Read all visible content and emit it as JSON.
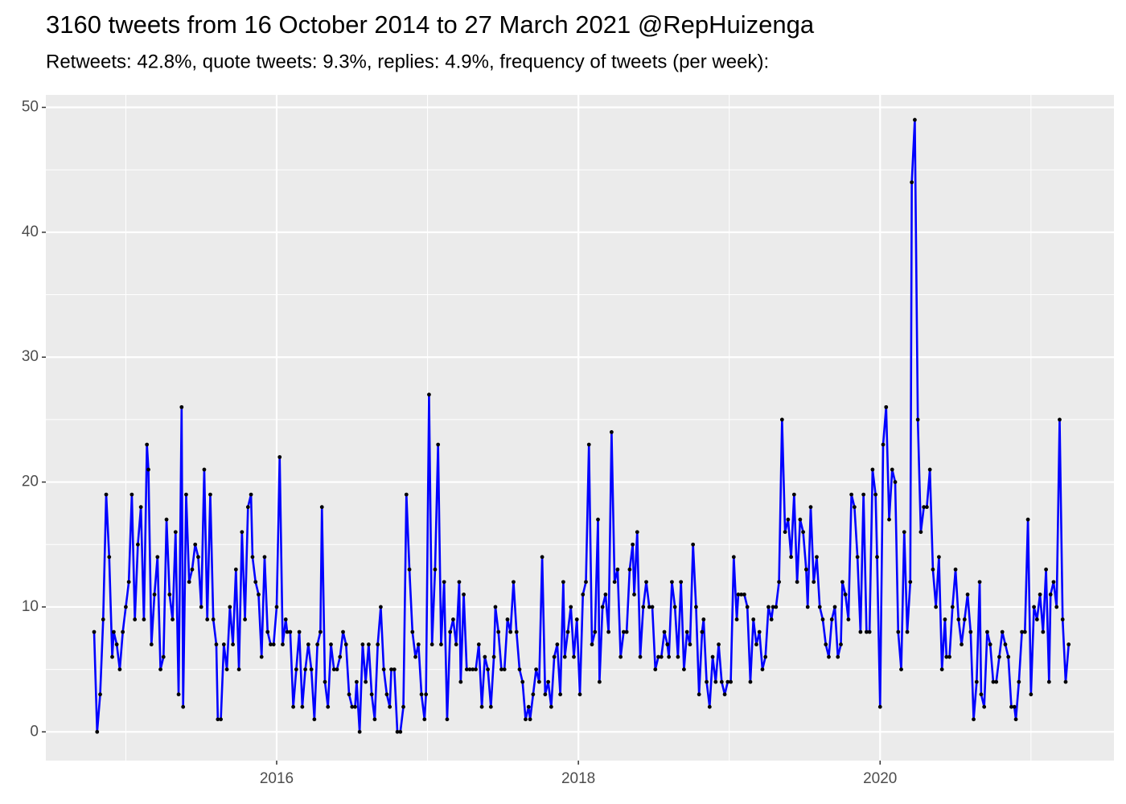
{
  "chart_data": {
    "type": "line",
    "title": "3160 tweets from 16 October 2014 to 27 March 2021 @RepHuizenga",
    "subtitle": "Retweets: 42.8%, quote tweets: 9.3%, replies: 4.9%, frequency of tweets (per week):",
    "x": [
      2014.79,
      2014.81,
      2014.83,
      2014.85,
      2014.87,
      2014.89,
      2014.91,
      2014.92,
      2014.94,
      2014.96,
      2014.98,
      2015,
      2015.02,
      2015.04,
      2015.06,
      2015.08,
      2015.1,
      2015.12,
      2015.14,
      2015.15,
      2015.17,
      2015.19,
      2015.21,
      2015.23,
      2015.25,
      2015.27,
      2015.29,
      2015.31,
      2015.33,
      2015.35,
      2015.37,
      2015.38,
      2015.4,
      2015.42,
      2015.44,
      2015.46,
      2015.48,
      2015.5,
      2015.52,
      2015.54,
      2015.56,
      2015.58,
      2015.6,
      2015.61,
      2015.63,
      2015.65,
      2015.67,
      2015.69,
      2015.71,
      2015.73,
      2015.75,
      2015.77,
      2015.79,
      2015.81,
      2015.83,
      2015.84,
      2015.86,
      2015.88,
      2015.9,
      2015.92,
      2015.94,
      2015.96,
      2015.98,
      2016,
      2016.02,
      2016.04,
      2016.06,
      2016.07,
      2016.09,
      2016.11,
      2016.13,
      2016.15,
      2016.17,
      2016.19,
      2016.21,
      2016.23,
      2016.25,
      2016.27,
      2016.29,
      2016.3,
      2016.32,
      2016.34,
      2016.36,
      2016.38,
      2016.4,
      2016.42,
      2016.44,
      2016.46,
      2016.48,
      2016.5,
      2016.52,
      2016.53,
      2016.55,
      2016.57,
      2016.59,
      2016.61,
      2016.63,
      2016.65,
      2016.67,
      2016.69,
      2016.71,
      2016.73,
      2016.75,
      2016.76,
      2016.78,
      2016.8,
      2016.82,
      2016.84,
      2016.86,
      2016.88,
      2016.9,
      2016.92,
      2016.94,
      2016.96,
      2016.98,
      2016.99,
      2017.01,
      2017.03,
      2017.05,
      2017.07,
      2017.09,
      2017.11,
      2017.13,
      2017.15,
      2017.17,
      2017.19,
      2017.21,
      2017.22,
      2017.24,
      2017.26,
      2017.28,
      2017.3,
      2017.32,
      2017.34,
      2017.36,
      2017.38,
      2017.4,
      2017.42,
      2017.44,
      2017.45,
      2017.47,
      2017.49,
      2017.51,
      2017.53,
      2017.55,
      2017.57,
      2017.59,
      2017.61,
      2017.63,
      2017.65,
      2017.67,
      2017.68,
      2017.7,
      2017.72,
      2017.74,
      2017.76,
      2017.78,
      2017.8,
      2017.82,
      2017.84,
      2017.86,
      2017.88,
      2017.9,
      2017.91,
      2017.93,
      2017.95,
      2017.97,
      2017.99,
      2018.01,
      2018.03,
      2018.05,
      2018.07,
      2018.09,
      2018.11,
      2018.13,
      2018.14,
      2018.16,
      2018.18,
      2018.2,
      2018.22,
      2018.24,
      2018.26,
      2018.28,
      2018.3,
      2018.32,
      2018.34,
      2018.36,
      2018.37,
      2018.39,
      2018.41,
      2018.43,
      2018.45,
      2018.47,
      2018.49,
      2018.51,
      2018.53,
      2018.55,
      2018.57,
      2018.59,
      2018.6,
      2018.62,
      2018.64,
      2018.66,
      2018.68,
      2018.7,
      2018.72,
      2018.74,
      2018.76,
      2018.78,
      2018.8,
      2018.82,
      2018.83,
      2018.85,
      2018.87,
      2018.89,
      2018.91,
      2018.93,
      2018.95,
      2018.97,
      2018.99,
      2019.01,
      2019.03,
      2019.05,
      2019.06,
      2019.08,
      2019.1,
      2019.12,
      2019.14,
      2019.16,
      2019.18,
      2019.2,
      2019.22,
      2019.24,
      2019.26,
      2019.28,
      2019.29,
      2019.31,
      2019.33,
      2019.35,
      2019.37,
      2019.39,
      2019.41,
      2019.43,
      2019.45,
      2019.47,
      2019.49,
      2019.51,
      2019.52,
      2019.54,
      2019.56,
      2019.58,
      2019.6,
      2019.62,
      2019.64,
      2019.66,
      2019.68,
      2019.7,
      2019.72,
      2019.74,
      2019.75,
      2019.77,
      2019.79,
      2019.81,
      2019.83,
      2019.85,
      2019.87,
      2019.89,
      2019.91,
      2019.93,
      2019.95,
      2019.97,
      2019.98,
      2020,
      2020.02,
      2020.04,
      2020.06,
      2020.08,
      2020.1,
      2020.12,
      2020.14,
      2020.16,
      2020.18,
      2020.2,
      2020.21,
      2020.23,
      2020.25,
      2020.27,
      2020.29,
      2020.31,
      2020.33,
      2020.35,
      2020.37,
      2020.39,
      2020.41,
      2020.43,
      2020.44,
      2020.46,
      2020.48,
      2020.5,
      2020.52,
      2020.54,
      2020.56,
      2020.58,
      2020.6,
      2020.62,
      2020.64,
      2020.66,
      2020.67,
      2020.69,
      2020.71,
      2020.73,
      2020.75,
      2020.77,
      2020.79,
      2020.81,
      2020.83,
      2020.85,
      2020.87,
      2020.89,
      2020.9,
      2020.92,
      2020.94,
      2020.96,
      2020.98,
      2021,
      2021.02,
      2021.04,
      2021.06,
      2021.08,
      2021.1,
      2021.12,
      2021.13,
      2021.15,
      2021.17,
      2021.19,
      2021.21,
      2021.23,
      2021.25
    ],
    "series": [
      {
        "color": "#0000ff",
        "point_color": "#000000",
        "values": [
          8,
          0,
          3,
          9,
          19,
          14,
          6,
          8,
          7,
          5,
          8,
          10,
          12,
          19,
          9,
          15,
          18,
          9,
          23,
          21,
          7,
          11,
          14,
          5,
          6,
          17,
          11,
          9,
          16,
          3,
          26,
          2,
          19,
          12,
          13,
          15,
          14,
          10,
          21,
          9,
          19,
          9,
          7,
          1,
          1,
          7,
          5,
          10,
          7,
          13,
          5,
          16,
          9,
          18,
          19,
          14,
          12,
          11,
          6,
          14,
          8,
          7,
          7,
          10,
          22,
          7,
          9,
          8,
          8,
          2,
          5,
          8,
          2,
          5,
          7,
          5,
          1,
          7,
          8,
          18,
          4,
          2,
          7,
          5,
          5,
          6,
          8,
          7,
          3,
          2,
          2,
          4,
          0,
          7,
          4,
          7,
          3,
          1,
          7,
          10,
          5,
          3,
          2,
          5,
          5,
          0,
          0,
          2,
          19,
          13,
          8,
          6,
          7,
          3,
          1,
          3,
          27,
          7,
          13,
          23,
          7,
          12,
          1,
          8,
          9,
          7,
          12,
          4,
          11,
          5,
          5,
          5,
          5,
          7,
          2,
          6,
          5,
          2,
          6,
          10,
          8,
          5,
          5,
          9,
          8,
          12,
          8,
          5,
          4,
          1,
          2,
          1,
          3,
          5,
          4,
          14,
          3,
          4,
          2,
          6,
          7,
          3,
          12,
          6,
          8,
          10,
          6,
          9,
          3,
          11,
          12,
          23,
          7,
          8,
          17,
          4,
          10,
          11,
          8,
          24,
          12,
          13,
          6,
          8,
          8,
          13,
          15,
          11,
          16,
          6,
          10,
          12,
          10,
          10,
          5,
          6,
          6,
          8,
          7,
          6,
          12,
          10,
          6,
          12,
          5,
          8,
          7,
          15,
          10,
          3,
          8,
          9,
          4,
          2,
          6,
          4,
          7,
          4,
          3,
          4,
          4,
          14,
          9,
          11,
          11,
          11,
          10,
          4,
          9,
          7,
          8,
          5,
          6,
          10,
          9,
          10,
          10,
          12,
          25,
          16,
          17,
          14,
          19,
          12,
          17,
          16,
          13,
          10,
          18,
          12,
          14,
          10,
          9,
          7,
          6,
          9,
          10,
          6,
          7,
          12,
          11,
          9,
          19,
          18,
          14,
          8,
          19,
          8,
          8,
          21,
          19,
          14,
          2,
          23,
          26,
          17,
          21,
          20,
          8,
          5,
          16,
          8,
          12,
          44,
          49,
          25,
          16,
          18,
          18,
          21,
          13,
          10,
          14,
          5,
          9,
          6,
          6,
          10,
          13,
          9,
          7,
          9,
          11,
          8,
          1,
          4,
          12,
          3,
          2,
          8,
          7,
          4,
          4,
          6,
          8,
          7,
          6,
          2,
          2,
          1,
          4,
          8,
          8,
          17,
          3,
          10,
          9,
          11,
          8,
          13,
          4,
          11,
          12,
          10,
          25,
          9,
          4,
          7
        ]
      }
    ],
    "xlim": [
      2014.47,
      2021.55
    ],
    "ylim": [
      -2.3,
      51
    ],
    "xticks": [
      2016,
      2018,
      2020
    ],
    "yticks": [
      0,
      10,
      20,
      30,
      40,
      50
    ],
    "xminor": [
      2015,
      2017,
      2019,
      2021
    ],
    "yminor": [
      5,
      15,
      25,
      35,
      45
    ],
    "grid": true,
    "background": "#ebebeb"
  }
}
